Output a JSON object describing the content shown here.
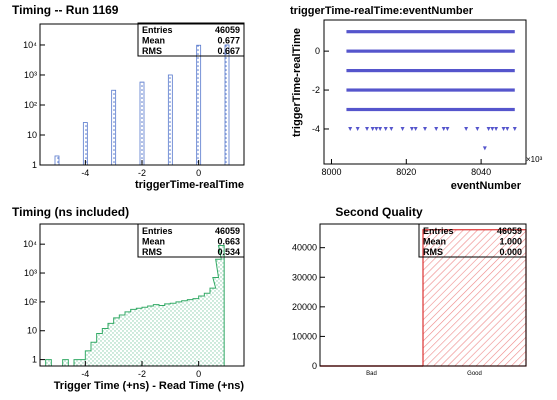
{
  "chart_data": [
    {
      "type": "bar",
      "title": "Timing -- Run 1169",
      "xlabel": "triggerTime-realTime",
      "ylabel": "",
      "x_range": [
        -5.6,
        1.6
      ],
      "y_scale": "log",
      "y_range": [
        1,
        50000
      ],
      "x_ticks": [
        -4,
        -2,
        0
      ],
      "y_ticks": [
        {
          "v": 1,
          "t": "1"
        },
        {
          "v": 10,
          "t": "10"
        },
        {
          "v": 100,
          "t": "10²"
        },
        {
          "v": 1000,
          "t": "10³"
        },
        {
          "v": 10000,
          "t": "10⁴"
        }
      ],
      "x": [
        -5,
        -4,
        -3,
        -2,
        -1,
        0,
        1
      ],
      "values": [
        2,
        26,
        310,
        580,
        1000,
        9800,
        10000
      ],
      "bar_color": "#5577cc",
      "grid": false,
      "stats": {
        "entries_label": "Entries",
        "entries": "46059",
        "mean_label": "Mean",
        "mean": "0.677",
        "rms_label": "RMS",
        "rms": "0.667"
      }
    },
    {
      "type": "scatter",
      "title": "triggerTime-realTime:eventNumber",
      "xlabel": "eventNumber",
      "ylabel": "triggerTime-realTime",
      "x_exponent": "×10³",
      "x_range": [
        7998,
        8052
      ],
      "y_range": [
        -5.8,
        1.6
      ],
      "x_ticks": [
        8000,
        8020,
        8040
      ],
      "y_ticks": [
        0,
        -2,
        -4
      ],
      "marker_color": "#5555cc",
      "bands": [
        {
          "y": 1,
          "x_from": 8004,
          "x_to": 8049
        },
        {
          "y": 0,
          "x_from": 8004,
          "x_to": 8049
        },
        {
          "y": -1,
          "x_from": 8004,
          "x_to": 8049
        },
        {
          "y": -2,
          "x_from": 8004,
          "x_to": 8049
        },
        {
          "y": -3,
          "x_from": 8004,
          "x_to": 8049
        }
      ],
      "points": [
        [
          8005,
          -4
        ],
        [
          8007,
          -4
        ],
        [
          8009.5,
          -4
        ],
        [
          8011,
          -4
        ],
        [
          8012,
          -4
        ],
        [
          8013,
          -4
        ],
        [
          8014.5,
          -4
        ],
        [
          8016,
          -4
        ],
        [
          8019,
          -4
        ],
        [
          8021.5,
          -4
        ],
        [
          8022.5,
          -4
        ],
        [
          8025,
          -4
        ],
        [
          8028,
          -4
        ],
        [
          8030,
          -4
        ],
        [
          8031,
          -4
        ],
        [
          8036,
          -4
        ],
        [
          8039,
          -4
        ],
        [
          8042,
          -4
        ],
        [
          8043,
          -4
        ],
        [
          8044,
          -4
        ],
        [
          8046,
          -4
        ],
        [
          8047,
          -4
        ],
        [
          8049,
          -4
        ],
        [
          8041,
          -5
        ]
      ]
    },
    {
      "type": "area",
      "title": "Timing (ns included)",
      "xlabel": "Trigger Time (+ns) - Read Time (+ns)",
      "ylabel": "",
      "x_range": [
        -5.6,
        1.6
      ],
      "y_scale": "log",
      "y_range": [
        0.6,
        50000
      ],
      "x_ticks": [
        -4,
        -2,
        0
      ],
      "y_ticks": [
        {
          "v": 1,
          "t": "1"
        },
        {
          "v": 10,
          "t": "10"
        },
        {
          "v": 100,
          "t": "10²"
        },
        {
          "v": 1000,
          "t": "10³"
        },
        {
          "v": 10000,
          "t": "10⁴"
        }
      ],
      "x": [
        -5.3,
        -5.1,
        -4.9,
        -4.7,
        -4.5,
        -4.3,
        -4.1,
        -3.9,
        -3.7,
        -3.5,
        -3.3,
        -3.1,
        -2.9,
        -2.7,
        -2.5,
        -2.3,
        -2.1,
        -1.9,
        -1.7,
        -1.5,
        -1.3,
        -1.1,
        -0.9,
        -0.7,
        -0.5,
        -0.3,
        -0.1,
        0.1,
        0.3,
        0.5,
        0.6,
        0.7,
        0.8
      ],
      "values": [
        1,
        0.6,
        0.6,
        1,
        0.6,
        1,
        1,
        2,
        4,
        8,
        12,
        18,
        28,
        35,
        45,
        55,
        60,
        65,
        72,
        80,
        75,
        85,
        90,
        100,
        110,
        120,
        130,
        160,
        200,
        300,
        700,
        3000,
        9000
      ],
      "line_color": "#33aa66",
      "fill_color": "#88ccaa",
      "grid": false,
      "stats": {
        "entries_label": "Entries",
        "entries": "46059",
        "mean_label": "Mean",
        "mean": "0.663",
        "rms_label": "RMS",
        "rms": "0.534"
      }
    },
    {
      "type": "bar",
      "title": "Second Quality",
      "xlabel": "",
      "ylabel": "",
      "categories": [
        "Bad",
        "Good"
      ],
      "values": [
        0,
        46059
      ],
      "y_range": [
        0,
        48000
      ],
      "y_ticks": [
        0,
        10000,
        20000,
        30000,
        40000
      ],
      "bar_color": "#dd3333",
      "grid": false,
      "stats": {
        "entries_label": "Entries",
        "entries": "46059",
        "mean_label": "Mean",
        "mean": "1.000",
        "rms_label": "RMS",
        "rms": "0.000"
      }
    }
  ]
}
